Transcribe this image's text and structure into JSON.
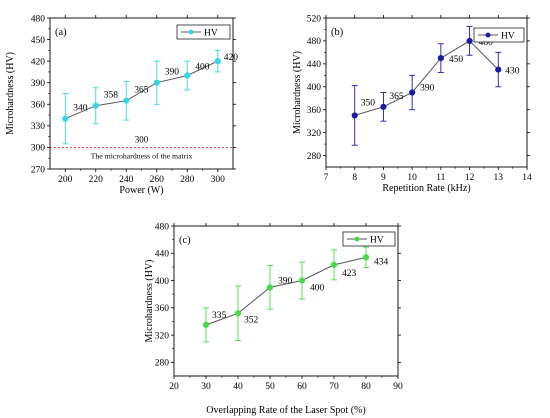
{
  "chart_data": [
    {
      "type": "line",
      "panel_label": "(a)",
      "xlabel": "Power (W)",
      "ylabel": "Microhardness (HV)",
      "xlim": [
        190,
        310
      ],
      "ylim": [
        270,
        480
      ],
      "xticks": [
        200,
        220,
        240,
        260,
        280,
        300
      ],
      "yticks": [
        270,
        300,
        330,
        360,
        390,
        420,
        450,
        480
      ],
      "grid": false,
      "legend": {
        "placement": "top-right",
        "entries": [
          "HV"
        ]
      },
      "series": [
        {
          "name": "HV",
          "color": "#33d6e6",
          "x": [
            200,
            220,
            240,
            260,
            280,
            300
          ],
          "y": [
            340,
            358,
            365,
            390,
            400,
            420
          ],
          "error": [
            35,
            25,
            27,
            30,
            20,
            15
          ],
          "labels": [
            "340",
            "358",
            "365",
            "390",
            "400",
            "420"
          ]
        }
      ],
      "reference_line": {
        "y": 300,
        "value_label": "300",
        "text": "The microhardness of the matrix",
        "color": "#e03030"
      }
    },
    {
      "type": "line",
      "panel_label": "(b)",
      "xlabel": "Repetition Rate (kHz)",
      "ylabel": "Microhardness (HV)",
      "xlim": [
        7,
        14
      ],
      "ylim": [
        260,
        520
      ],
      "xticks": [
        7,
        8,
        9,
        10,
        11,
        12,
        13,
        14
      ],
      "yticks": [
        280,
        320,
        360,
        400,
        440,
        480,
        520
      ],
      "grid": false,
      "legend": {
        "placement": "top-right",
        "entries": [
          "HV"
        ]
      },
      "series": [
        {
          "name": "HV",
          "color": "#1a1aa6",
          "x": [
            8,
            9,
            10,
            11,
            12,
            13
          ],
          "y": [
            350,
            365,
            390,
            450,
            480,
            430
          ],
          "error": [
            52,
            25,
            30,
            25,
            25,
            30
          ],
          "labels": [
            "350",
            "365",
            "390",
            "450",
            "480",
            "430"
          ]
        }
      ]
    },
    {
      "type": "line",
      "panel_label": "(c)",
      "xlabel": "Overlapping Rate of the Laser Spot (%)",
      "ylabel": "Microhardness (HV)",
      "xlim": [
        20,
        90
      ],
      "ylim": [
        260,
        480
      ],
      "xticks": [
        20,
        30,
        40,
        50,
        60,
        70,
        80,
        90
      ],
      "yticks": [
        280,
        320,
        360,
        400,
        440,
        480
      ],
      "grid": false,
      "legend": {
        "placement": "top-right",
        "entries": [
          "HV"
        ]
      },
      "series": [
        {
          "name": "HV",
          "color": "#44dd44",
          "x": [
            30,
            40,
            50,
            60,
            70,
            80
          ],
          "y": [
            335,
            352,
            390,
            400,
            423,
            434
          ],
          "error": [
            25,
            40,
            32,
            27,
            22,
            15
          ],
          "labels": [
            "335",
            "352",
            "390",
            "400",
            "423",
            "434"
          ]
        }
      ]
    }
  ]
}
